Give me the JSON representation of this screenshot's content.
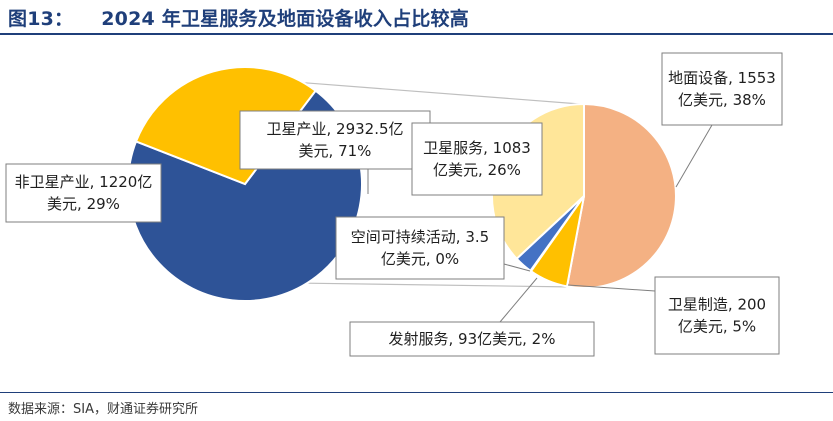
{
  "header": {
    "fig_no": "图13：",
    "title": "2024 年卫星服务及地面设备收入占比较高"
  },
  "footer": {
    "source": "数据来源：SIA，财通证券研究所"
  },
  "colors": {
    "title": "#1f3f7a",
    "satellite_industry": "#2e5397",
    "non_satellite": "#ffc000",
    "ground_equipment": "#f4b183",
    "satellite_services": "#ffe699",
    "launch_services": "#4472c4",
    "manufacturing": "#ffc000",
    "connector": "#bfbfbf"
  },
  "chart_data": {
    "type": "pie",
    "unit": "亿美元",
    "main_pie": {
      "slices": [
        {
          "key": "satellite_industry",
          "name": "卫星产业",
          "value": 2932.5,
          "percent": 71,
          "label_lines": [
            "卫星产业, 2932.5亿",
            "美元, 71%"
          ]
        },
        {
          "key": "non_satellite",
          "name": "非卫星产业",
          "value": 1220,
          "percent": 29,
          "label_lines": [
            "非卫星产业, 1220亿",
            "美元, 29%"
          ]
        }
      ]
    },
    "breakdown_pie": {
      "of": "卫星产业",
      "slices": [
        {
          "key": "ground_equipment",
          "name": "地面设备",
          "value": 1553,
          "percent": 38,
          "label_lines": [
            "地面设备, 1553",
            "亿美元, 38%"
          ]
        },
        {
          "key": "manufacturing",
          "name": "卫星制造",
          "value": 200,
          "percent": 5,
          "label_lines": [
            "卫星制造, 200",
            "亿美元, 5%"
          ]
        },
        {
          "key": "sustainable",
          "name": "空间可持续活动",
          "value": 3.5,
          "percent": 0,
          "label_lines": [
            "空间可持续活动, 3.5",
            "亿美元, 0%"
          ]
        },
        {
          "key": "launch_services",
          "name": "发射服务",
          "value": 93,
          "percent": 2,
          "label_lines": [
            "发射服务, 93亿美元, 2%"
          ]
        },
        {
          "key": "satellite_services",
          "name": "卫星服务",
          "value": 1083,
          "percent": 26,
          "label_lines": [
            "卫星服务, 1083",
            "亿美元, 26%"
          ]
        }
      ]
    }
  }
}
